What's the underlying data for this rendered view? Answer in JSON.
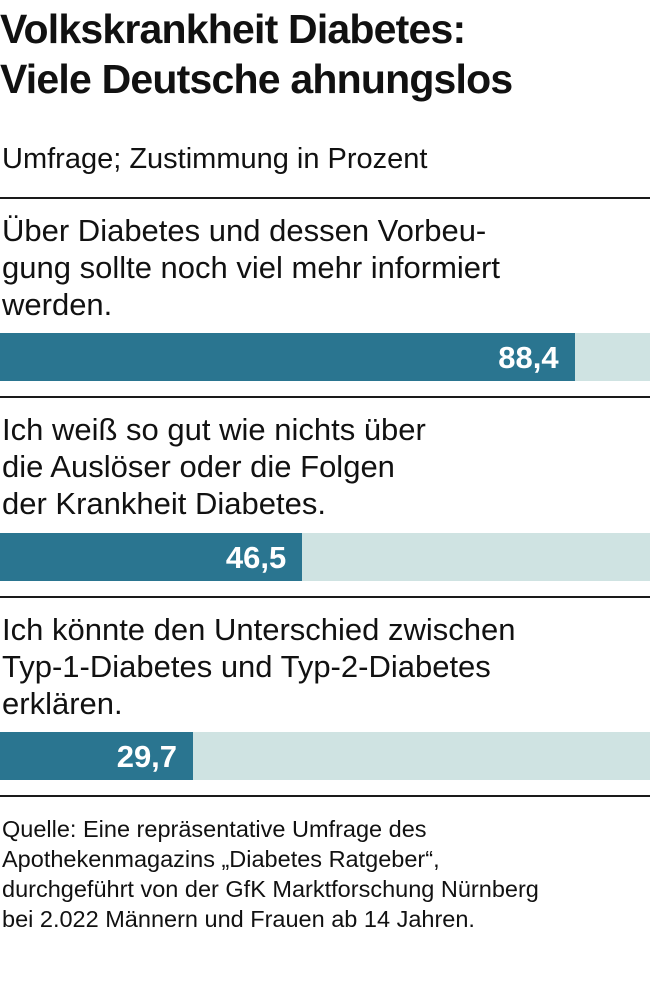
{
  "title_lines": [
    "Volkskrankheit Diabetes:",
    "Viele Deutsche ahnungslos"
  ],
  "subtitle": "Umfrage; Zustimmung in Prozent",
  "colors": {
    "bar": "#2a7590",
    "track": "#cfe3e2",
    "rule": "#1a1a1a",
    "value_text": "#ffffff"
  },
  "chart_data": {
    "type": "bar",
    "orientation": "horizontal",
    "title": "Volkskrankheit Diabetes: Viele Deutsche ahnungslos",
    "subtitle": "Umfrage; Zustimmung in Prozent",
    "unit": "Prozent",
    "xlim": [
      0,
      100
    ],
    "grid": false,
    "legend": "none",
    "items": [
      {
        "label_lines": [
          "Über Diabetes und dessen Vorbeu-",
          "gung sollte noch viel mehr informiert",
          "werden."
        ],
        "value": 88.4,
        "value_label": "88,4"
      },
      {
        "label_lines": [
          "Ich weiß so gut wie nichts über",
          "die Auslöser oder die Folgen",
          "der Krankheit Diabetes."
        ],
        "value": 46.5,
        "value_label": "46,5"
      },
      {
        "label_lines": [
          "Ich könnte den Unterschied zwischen",
          "Typ-1-Diabetes und Typ-2-Diabetes",
          "erklären."
        ],
        "value": 29.7,
        "value_label": "29,7"
      }
    ]
  },
  "source_lines": [
    "Quelle: Eine repräsentative Umfrage des",
    "Apothekenmagazins „Diabetes Ratgeber“,",
    "durchgeführt von der GfK Marktforschung Nürnberg",
    "bei 2.022 Männern und Frauen ab 14 Jahren."
  ]
}
